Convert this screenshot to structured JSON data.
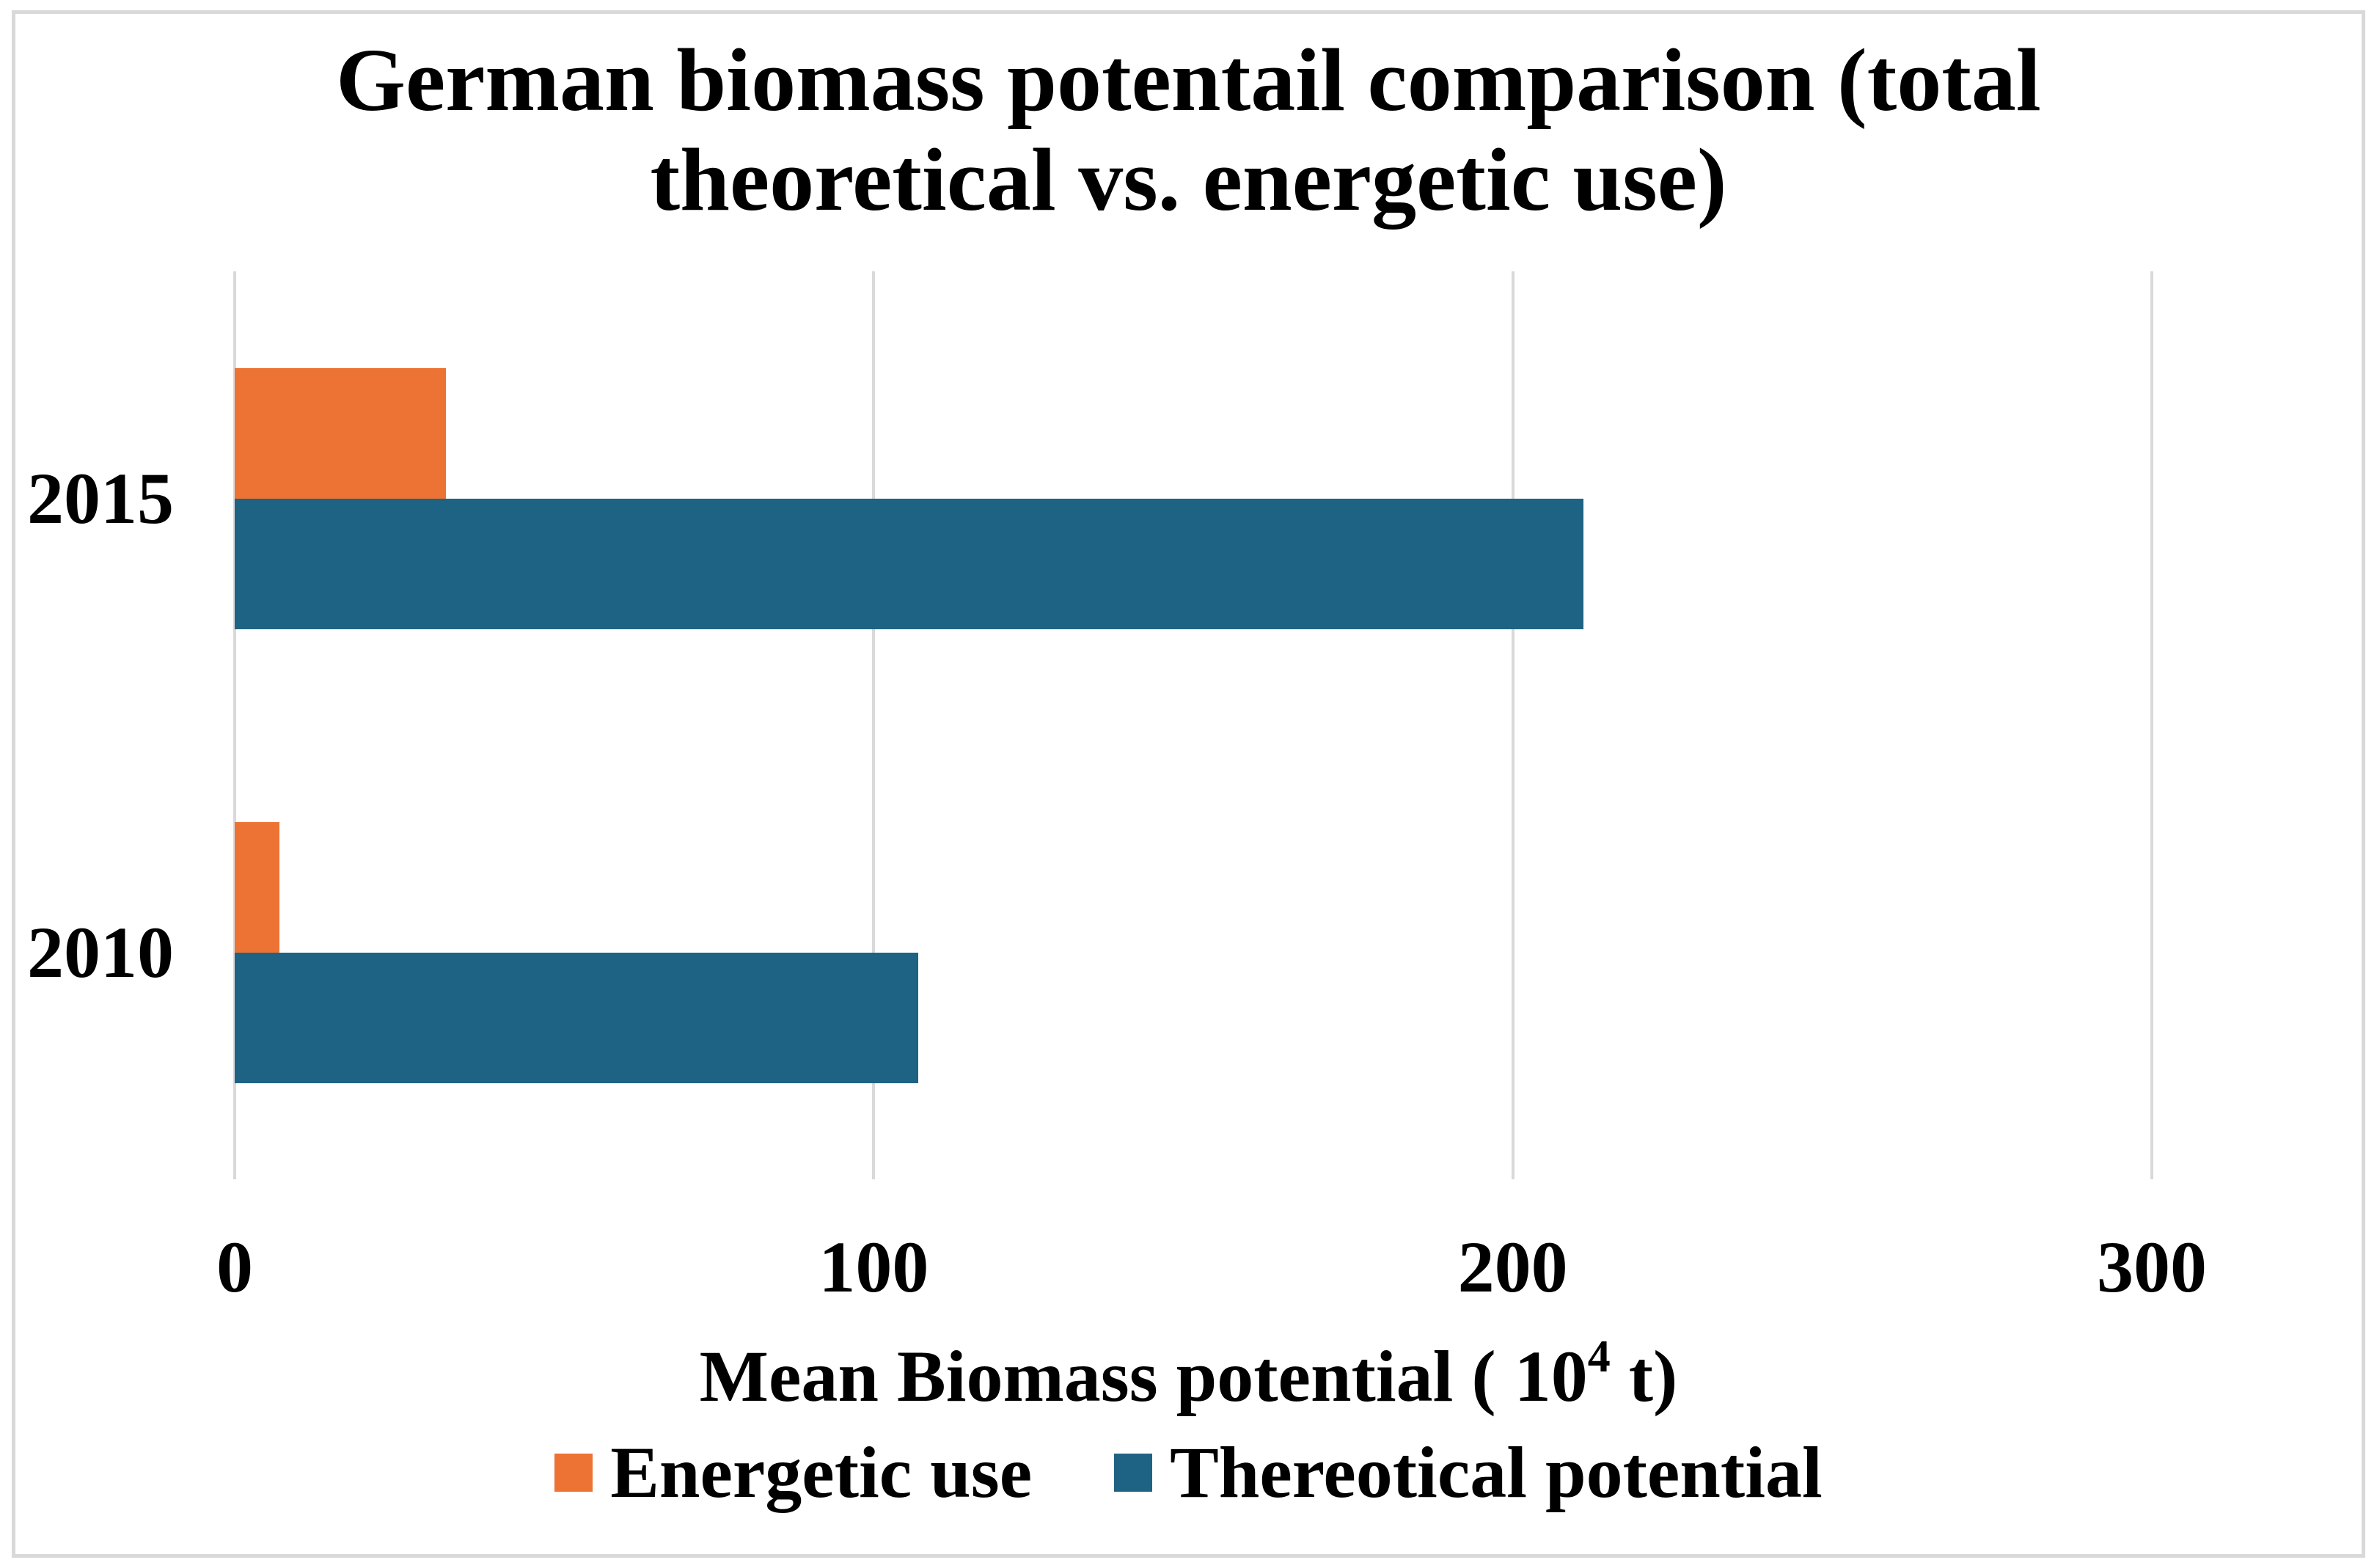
{
  "chart_data": {
    "type": "bar",
    "orientation": "horizontal",
    "title": "German biomass potentail comparison (total theoretical vs. energetic use)",
    "title_lines": [
      "German biomass potentail comparison (total",
      "theoretical vs. energetic use)"
    ],
    "categories": [
      "2015",
      "2010"
    ],
    "series": [
      {
        "name": "Energetic use",
        "color": "#EC7333",
        "values": [
          33,
          7
        ]
      },
      {
        "name": "Thereotical potential",
        "color": "#1F6384",
        "values": [
          211,
          107
        ]
      }
    ],
    "xlabel": {
      "prefix": "Mean Biomass potential ( 10",
      "superscript": "4",
      "suffix": " t)"
    },
    "xlim": [
      0,
      300
    ],
    "xticks": [
      "0",
      "100",
      "200",
      "300"
    ],
    "grid": true,
    "legend_position": "bottom",
    "colors": {
      "gridline": "#D9D9D9",
      "frame_border": "#D9D9D9",
      "text": "#000000",
      "background": "#FFFFFF"
    }
  }
}
